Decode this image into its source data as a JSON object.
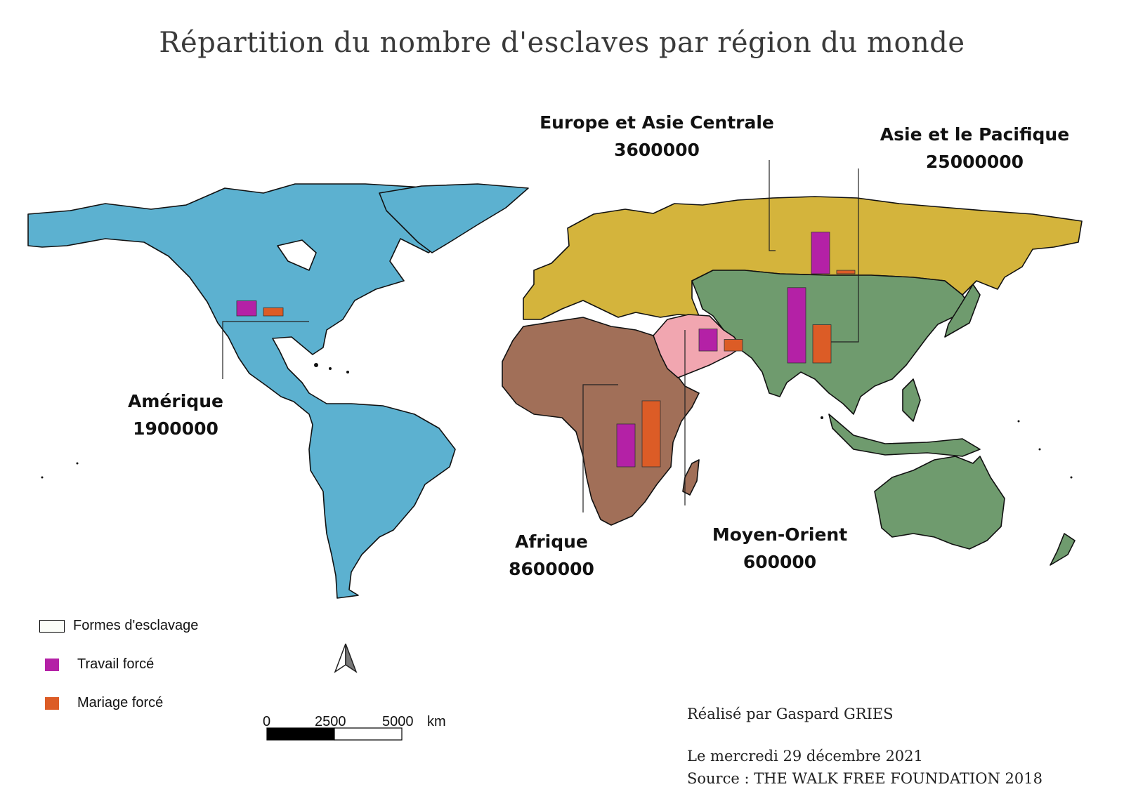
{
  "title": "Répartition du nombre d'esclaves par région du monde",
  "colors": {
    "amerique": "#5cb1d0",
    "europe_asie_centrale": "#d4b43c",
    "asie_pacifique": "#6f9b6e",
    "afrique": "#a16f58",
    "moyen_orient": "#f1a6b0",
    "travail_force": "#b421a6",
    "mariage_force": "#dc5c26",
    "outline": "#111111"
  },
  "regions": [
    {
      "id": "europe",
      "name": "Europe et Asie Centrale",
      "value": "3600000",
      "forced_labour": 3.6,
      "forced_marriage": 0.3
    },
    {
      "id": "asia",
      "name": "Asie et le Pacifique",
      "value": "25000000",
      "forced_labour": 6.5,
      "forced_marriage": 3.3
    },
    {
      "id": "america",
      "name": "Amérique",
      "value": "1900000",
      "forced_labour": 1.3,
      "forced_marriage": 0.7
    },
    {
      "id": "africa",
      "name": "Afrique",
      "value": "8600000",
      "forced_labour": 3.7,
      "forced_marriage": 5.7
    },
    {
      "id": "middle-east",
      "name": "Moyen-Orient",
      "value": "600000",
      "forced_labour": 1.9,
      "forced_marriage": 1.0
    }
  ],
  "legend": {
    "title": "Formes d'esclavage",
    "items": [
      {
        "label": "Travail forcé",
        "color": "#b421a6"
      },
      {
        "label": "Mariage forcé",
        "color": "#dc5c26"
      }
    ]
  },
  "scale_bar": {
    "ticks": [
      "0",
      "2500",
      "5000"
    ],
    "unit": "km"
  },
  "north_arrow": "north-arrow-icon",
  "credits": {
    "author": "Réalisé par Gaspard GRIES",
    "date": "Le mercredi 29 décembre 2021",
    "source": "Source : THE WALK FREE FOUNDATION 2018"
  }
}
